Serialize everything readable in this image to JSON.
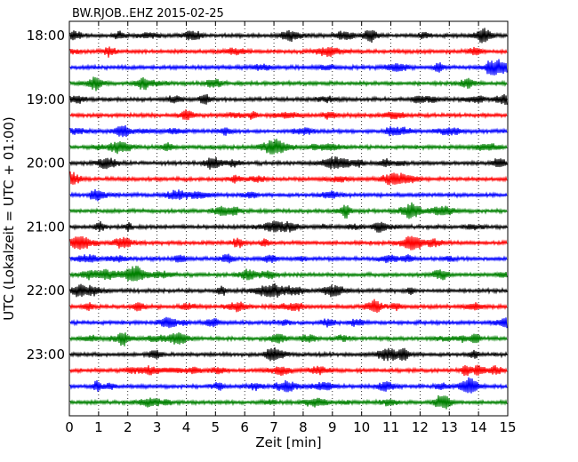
{
  "chart_data": {
    "type": "line",
    "title": "BW.RJOB..EHZ 2015-02-25",
    "xlabel": "Zeit  [min]",
    "ylabel": "UTC (Lokalzeit = UTC + 01:00)",
    "xlim": [
      0,
      15
    ],
    "x_ticks": [
      "0",
      "1",
      "2",
      "3",
      "4",
      "5",
      "6",
      "7",
      "8",
      "9",
      "10",
      "11",
      "12",
      "13",
      "14",
      "15"
    ],
    "y_ticks": [
      "18:00",
      "19:00",
      "20:00",
      "21:00",
      "22:00",
      "23:00"
    ],
    "grid": "vertical dotted",
    "trace_colors": [
      "#000000",
      "#ff0000",
      "#0000ff",
      "#008000"
    ],
    "traces_per_hour": 4,
    "trace_count": 24
  }
}
